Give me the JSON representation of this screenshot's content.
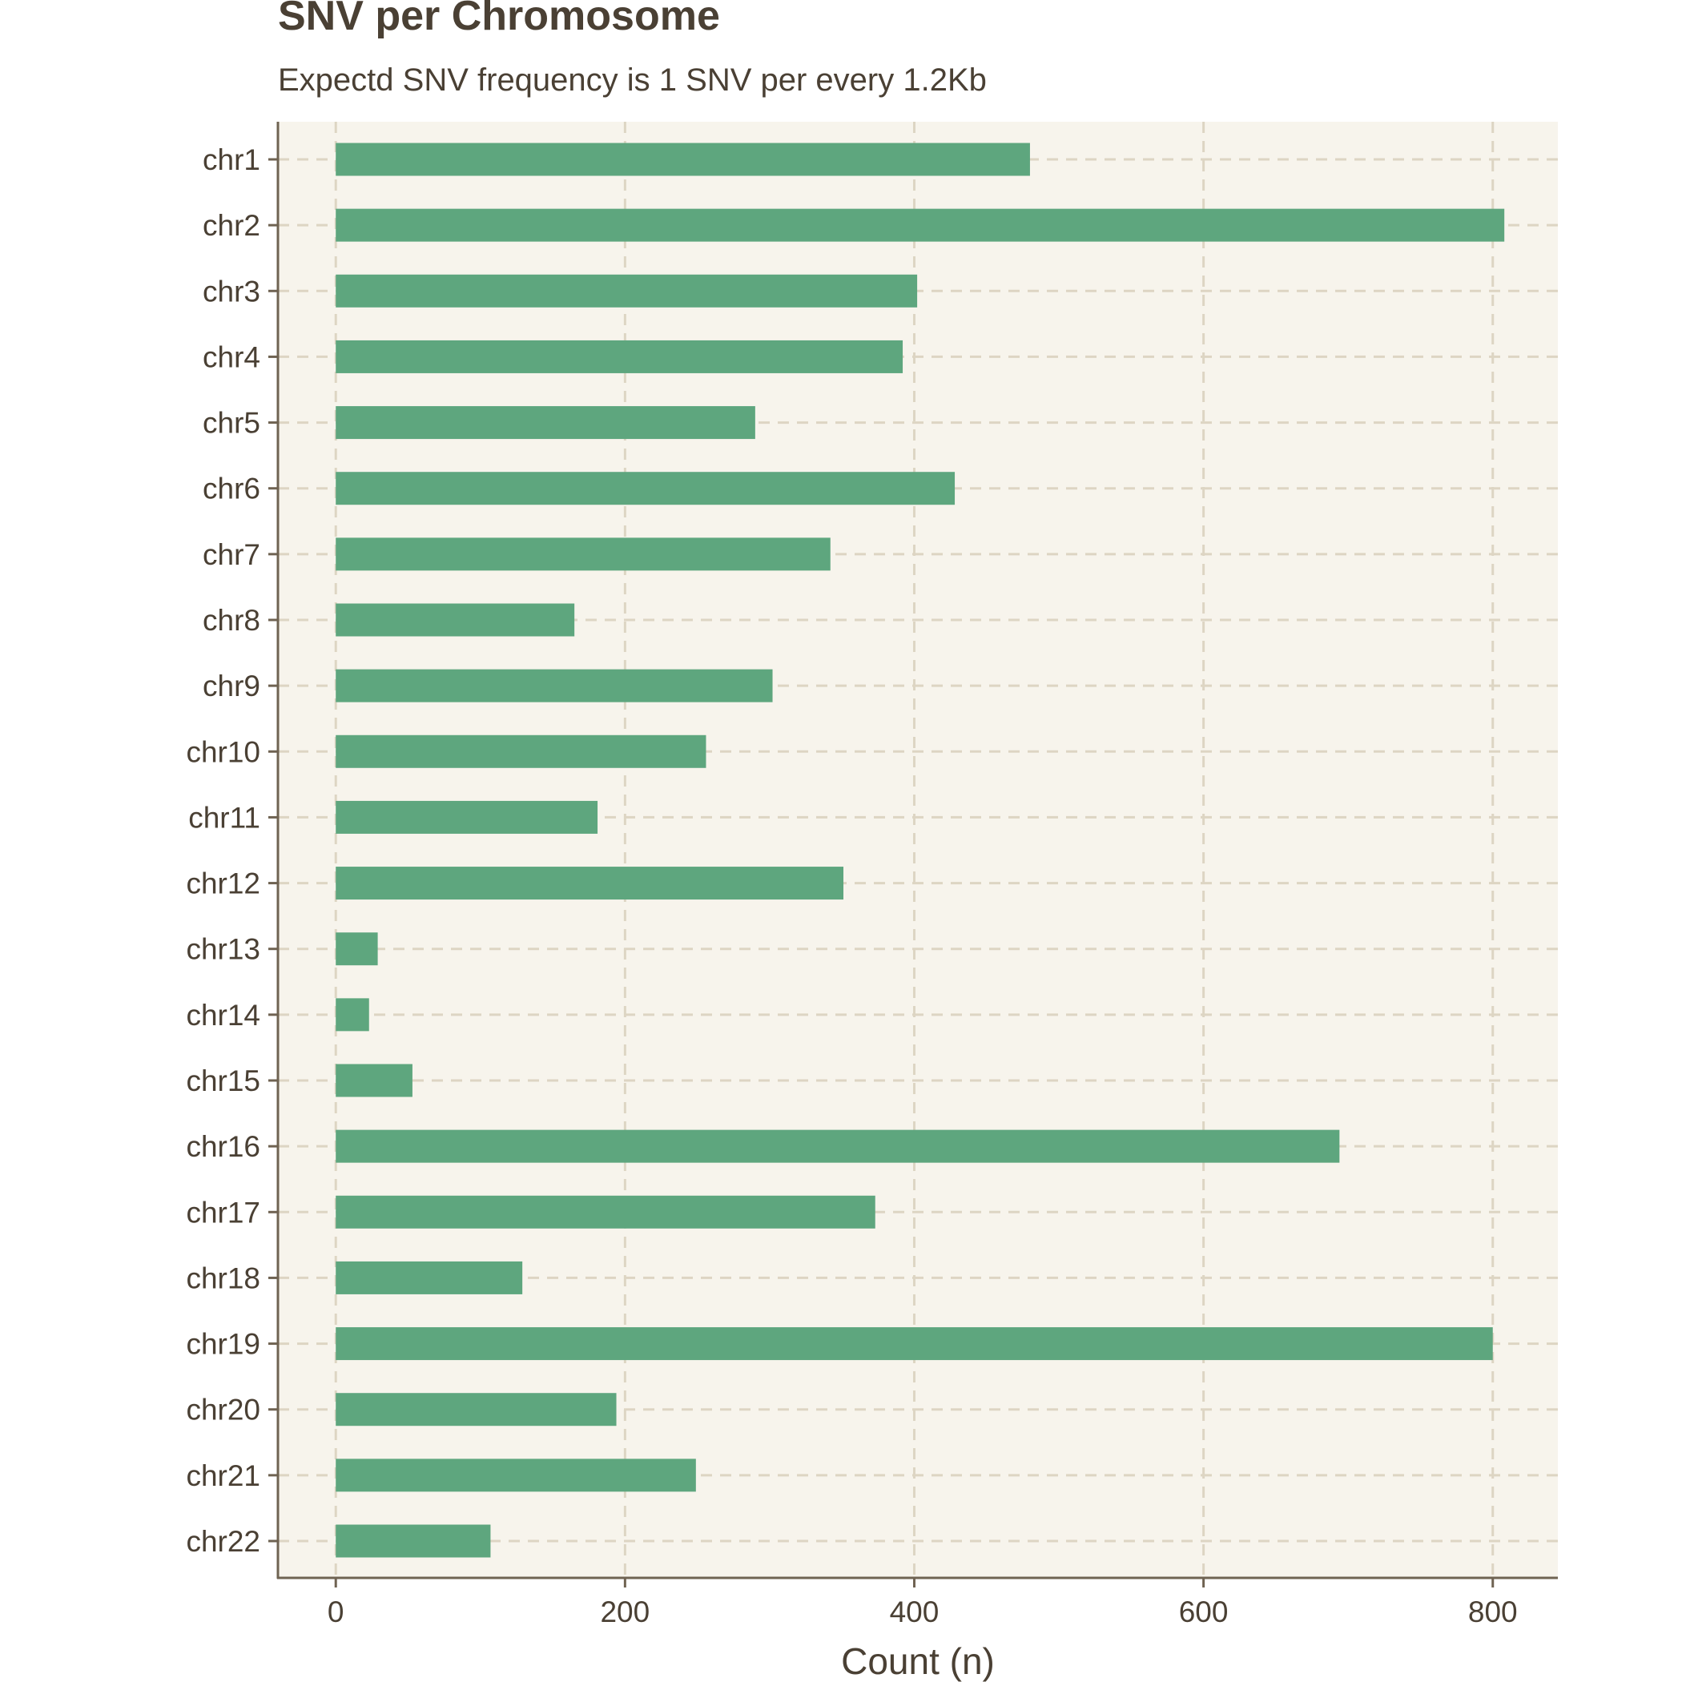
{
  "chart_data": {
    "type": "bar",
    "orientation": "horizontal",
    "title": "SNV per Chromosome",
    "subtitle": "Expectd SNV frequency is 1 SNV per every 1.2Kb",
    "xlabel": "Count (n)",
    "ylabel": "",
    "xlim": [
      -40,
      845
    ],
    "xticks": [
      0,
      200,
      400,
      600,
      800
    ],
    "categories": [
      "chr1",
      "chr2",
      "chr3",
      "chr4",
      "chr5",
      "chr6",
      "chr7",
      "chr8",
      "chr9",
      "chr10",
      "chr11",
      "chr12",
      "chr13",
      "chr14",
      "chr15",
      "chr16",
      "chr17",
      "chr18",
      "chr19",
      "chr20",
      "chr21",
      "chr22"
    ],
    "values": [
      480,
      808,
      402,
      392,
      290,
      428,
      342,
      165,
      302,
      256,
      181,
      351,
      29,
      23,
      53,
      694,
      373,
      129,
      800,
      194,
      249,
      107
    ],
    "grid": true,
    "colors": {
      "bar": "#5ea67e",
      "panel_background": "#f7f4ec",
      "grid": "#ddd5c3",
      "axis": "#6f6352",
      "text": "#4a4034"
    }
  }
}
